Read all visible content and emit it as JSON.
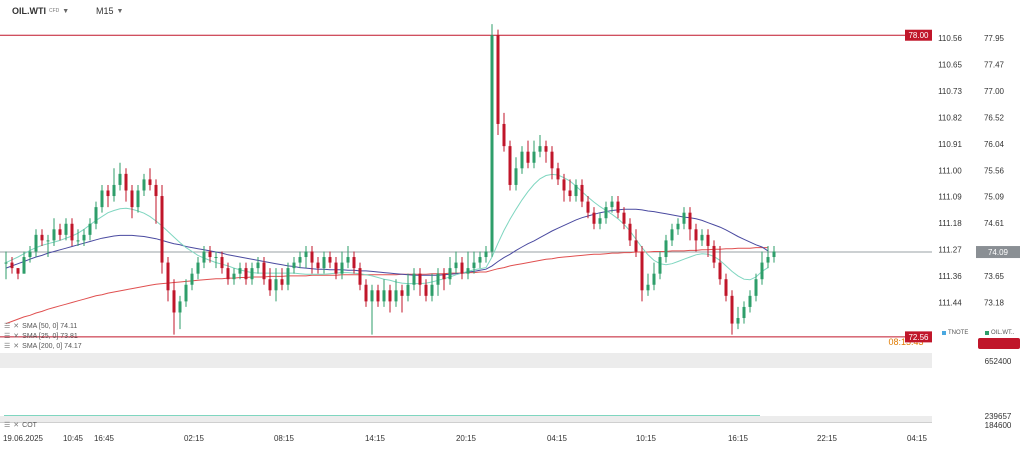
{
  "header": {
    "symbol": "OIL.WTI",
    "symbol_sub": "CFD",
    "timeframe": "M15"
  },
  "indicators": [
    {
      "label": "SMA [50, 0] 74.11",
      "color": "#4a4aa0"
    },
    {
      "label": "SMA [25, 0] 73.81",
      "color": "#7fd6c0"
    },
    {
      "label": "SMA [200, 0] 74.17",
      "color": "#e05050"
    }
  ],
  "cot_label": "COT",
  "legend_tags": [
    {
      "label": "TNOTE",
      "color": "#4aa8e0"
    },
    {
      "label": "OIL.WT..",
      "color": "#2e9e6a"
    }
  ],
  "colors": {
    "bull": "#2e9e6a",
    "bear": "#c0162a",
    "level": "#c0162a",
    "price_line": "#9aa0a6",
    "sma50": "#4a4aa0",
    "sma25": "#7fd6c0",
    "sma200": "#e05050",
    "countdown": "#e07b00"
  },
  "chart_data": {
    "type": "candlestick",
    "symbol": "OIL.WTI",
    "timeframe": "M15",
    "ylim": [
      72.4,
      78.3
    ],
    "price_ticks": [
      "77.95",
      "77.47",
      "77.00",
      "76.52",
      "76.04",
      "75.56",
      "75.09",
      "74.61",
      "74.13",
      "73.65",
      "73.18"
    ],
    "secondary_ticks": [
      "110.56",
      "110.65",
      "110.73",
      "110.82",
      "110.91",
      "111.00",
      "111.09",
      "111.18",
      "111.27",
      "111.36",
      "111.44"
    ],
    "x_labels": [
      "19.06.2025",
      "10:45",
      "16:45",
      "02:15",
      "08:15",
      "14:15",
      "20:15",
      "04:15",
      "10:15",
      "16:15",
      "22:15",
      "04:15"
    ],
    "levels": [
      {
        "label": "78.00",
        "value": 78.0
      },
      {
        "label": "72.56",
        "value": 72.56
      }
    ],
    "current_price": {
      "label": "74.09",
      "value": 74.09
    },
    "countdown_label": "08:15:43",
    "volume_axis_label": "652400",
    "cot_axis_labels": [
      "239657",
      "184600"
    ],
    "candles": [
      [
        73.9,
        73.9,
        74.1,
        73.6
      ],
      [
        73.9,
        73.8,
        74.0,
        73.7
      ],
      [
        73.8,
        73.7,
        73.8,
        73.6
      ],
      [
        73.7,
        74.0,
        74.1,
        73.7
      ],
      [
        74.0,
        74.1,
        74.2,
        73.9
      ],
      [
        74.1,
        74.4,
        74.5,
        74.0
      ],
      [
        74.4,
        74.3,
        74.5,
        74.2
      ],
      [
        74.3,
        74.3,
        74.4,
        74.0
      ],
      [
        74.3,
        74.5,
        74.7,
        74.2
      ],
      [
        74.5,
        74.4,
        74.6,
        74.3
      ],
      [
        74.4,
        74.6,
        74.7,
        74.3
      ],
      [
        74.6,
        74.3,
        74.7,
        74.2
      ],
      [
        74.3,
        74.3,
        74.5,
        74.2
      ],
      [
        74.3,
        74.4,
        74.5,
        74.2
      ],
      [
        74.4,
        74.6,
        74.7,
        74.3
      ],
      [
        74.6,
        74.9,
        75.0,
        74.5
      ],
      [
        74.9,
        75.2,
        75.3,
        74.8
      ],
      [
        75.2,
        75.1,
        75.3,
        74.9
      ],
      [
        75.1,
        75.3,
        75.6,
        75.0
      ],
      [
        75.3,
        75.5,
        75.7,
        75.2
      ],
      [
        75.5,
        75.2,
        75.6,
        75.0
      ],
      [
        75.2,
        74.9,
        75.3,
        74.7
      ],
      [
        74.9,
        75.2,
        75.3,
        74.8
      ],
      [
        75.2,
        75.4,
        75.5,
        75.1
      ],
      [
        75.4,
        75.3,
        75.6,
        75.2
      ],
      [
        75.3,
        75.1,
        75.4,
        74.6
      ],
      [
        75.1,
        73.9,
        75.3,
        73.7
      ],
      [
        73.9,
        73.4,
        74.0,
        73.2
      ],
      [
        73.4,
        73.0,
        73.6,
        72.6
      ],
      [
        73.0,
        73.2,
        73.3,
        72.7
      ],
      [
        73.2,
        73.5,
        73.6,
        73.1
      ],
      [
        73.5,
        73.7,
        73.8,
        73.4
      ],
      [
        73.7,
        73.9,
        74.0,
        73.6
      ],
      [
        73.9,
        74.1,
        74.2,
        73.8
      ],
      [
        74.1,
        74.0,
        74.2,
        73.9
      ],
      [
        74.0,
        74.0,
        74.1,
        73.8
      ],
      [
        74.0,
        73.8,
        74.1,
        73.7
      ],
      [
        73.8,
        73.6,
        73.9,
        73.5
      ],
      [
        73.6,
        73.7,
        73.8,
        73.5
      ],
      [
        73.7,
        73.8,
        73.9,
        73.6
      ],
      [
        73.8,
        73.6,
        73.9,
        73.5
      ],
      [
        73.6,
        73.8,
        73.9,
        73.5
      ],
      [
        73.8,
        73.9,
        74.0,
        73.7
      ],
      [
        73.9,
        73.6,
        74.0,
        73.5
      ],
      [
        73.6,
        73.4,
        73.8,
        73.3
      ],
      [
        73.4,
        73.6,
        73.8,
        73.2
      ],
      [
        73.6,
        73.5,
        73.8,
        73.4
      ],
      [
        73.5,
        73.8,
        73.9,
        73.4
      ],
      [
        73.8,
        73.9,
        74.0,
        73.7
      ],
      [
        73.9,
        74.0,
        74.1,
        73.8
      ],
      [
        74.0,
        74.1,
        74.2,
        73.8
      ],
      [
        74.1,
        73.9,
        74.2,
        73.7
      ],
      [
        73.9,
        73.8,
        74.0,
        73.7
      ],
      [
        73.8,
        74.0,
        74.1,
        73.7
      ],
      [
        74.0,
        73.9,
        74.1,
        73.8
      ],
      [
        73.9,
        73.7,
        74.0,
        73.6
      ],
      [
        73.7,
        73.9,
        74.1,
        73.6
      ],
      [
        73.9,
        74.0,
        74.2,
        73.8
      ],
      [
        74.0,
        73.8,
        74.1,
        73.7
      ],
      [
        73.8,
        73.5,
        73.9,
        73.4
      ],
      [
        73.5,
        73.2,
        73.6,
        73.1
      ],
      [
        73.2,
        73.4,
        73.5,
        72.6
      ],
      [
        73.4,
        73.2,
        73.5,
        73.1
      ],
      [
        73.2,
        73.4,
        73.6,
        73.1
      ],
      [
        73.4,
        73.2,
        73.5,
        73.0
      ],
      [
        73.2,
        73.4,
        73.6,
        73.1
      ],
      [
        73.4,
        73.3,
        73.5,
        73.0
      ],
      [
        73.3,
        73.5,
        73.7,
        73.2
      ],
      [
        73.5,
        73.7,
        73.8,
        73.4
      ],
      [
        73.7,
        73.5,
        73.8,
        73.3
      ],
      [
        73.5,
        73.3,
        73.6,
        73.2
      ],
      [
        73.3,
        73.5,
        73.7,
        73.2
      ],
      [
        73.5,
        73.7,
        73.8,
        73.3
      ],
      [
        73.7,
        73.6,
        73.8,
        73.4
      ],
      [
        73.6,
        73.8,
        74.0,
        73.5
      ],
      [
        73.8,
        73.9,
        74.1,
        73.7
      ],
      [
        73.9,
        73.7,
        74.0,
        73.6
      ],
      [
        73.7,
        73.8,
        74.1,
        73.6
      ],
      [
        73.8,
        73.9,
        74.1,
        73.7
      ],
      [
        73.9,
        74.0,
        74.1,
        73.8
      ],
      [
        74.0,
        74.1,
        74.2,
        73.9
      ],
      [
        74.1,
        78.0,
        78.2,
        74.0
      ],
      [
        78.0,
        76.4,
        78.1,
        76.2
      ],
      [
        76.4,
        76.0,
        76.6,
        75.9
      ],
      [
        76.0,
        75.3,
        76.1,
        75.2
      ],
      [
        75.3,
        75.6,
        75.8,
        75.2
      ],
      [
        75.6,
        75.9,
        76.0,
        75.5
      ],
      [
        75.9,
        75.7,
        76.1,
        75.6
      ],
      [
        75.7,
        75.9,
        76.1,
        75.6
      ],
      [
        75.9,
        76.0,
        76.2,
        75.8
      ],
      [
        76.0,
        75.9,
        76.1,
        75.7
      ],
      [
        75.9,
        75.6,
        76.0,
        75.4
      ],
      [
        75.6,
        75.4,
        75.7,
        75.3
      ],
      [
        75.4,
        75.2,
        75.5,
        75.0
      ],
      [
        75.2,
        75.1,
        75.4,
        75.0
      ],
      [
        75.1,
        75.3,
        75.4,
        75.0
      ],
      [
        75.3,
        75.0,
        75.4,
        74.9
      ],
      [
        75.0,
        74.8,
        75.1,
        74.7
      ],
      [
        74.8,
        74.6,
        74.9,
        74.5
      ],
      [
        74.6,
        74.7,
        74.8,
        74.5
      ],
      [
        74.7,
        74.9,
        75.0,
        74.6
      ],
      [
        74.9,
        75.0,
        75.1,
        74.8
      ],
      [
        75.0,
        74.8,
        75.1,
        74.7
      ],
      [
        74.8,
        74.6,
        74.9,
        74.5
      ],
      [
        74.6,
        74.3,
        74.7,
        74.2
      ],
      [
        74.3,
        74.1,
        74.5,
        74.0
      ],
      [
        74.1,
        73.4,
        74.2,
        73.2
      ],
      [
        73.4,
        73.5,
        73.7,
        73.3
      ],
      [
        73.5,
        73.7,
        73.9,
        73.4
      ],
      [
        73.7,
        74.0,
        74.1,
        73.6
      ],
      [
        74.0,
        74.3,
        74.4,
        73.9
      ],
      [
        74.3,
        74.5,
        74.6,
        74.2
      ],
      [
        74.5,
        74.6,
        74.7,
        74.4
      ],
      [
        74.6,
        74.8,
        74.9,
        74.5
      ],
      [
        74.8,
        74.5,
        74.9,
        74.3
      ],
      [
        74.5,
        74.3,
        74.6,
        74.1
      ],
      [
        74.3,
        74.4,
        74.5,
        74.2
      ],
      [
        74.4,
        74.2,
        74.5,
        74.0
      ],
      [
        74.2,
        73.9,
        74.3,
        73.8
      ],
      [
        73.9,
        73.6,
        74.2,
        73.5
      ],
      [
        73.6,
        73.3,
        73.7,
        73.2
      ],
      [
        73.3,
        72.8,
        73.4,
        72.6
      ],
      [
        72.8,
        72.9,
        73.1,
        72.7
      ],
      [
        72.9,
        73.1,
        73.2,
        72.8
      ],
      [
        73.1,
        73.3,
        73.4,
        73.0
      ],
      [
        73.3,
        73.6,
        73.7,
        73.2
      ],
      [
        73.6,
        73.9,
        74.1,
        73.5
      ],
      [
        73.9,
        74.0,
        74.2,
        73.8
      ],
      [
        74.0,
        74.1,
        74.2,
        73.9
      ]
    ],
    "sma_25": [
      73.9,
      73.95,
      74.0,
      74.06,
      74.12,
      74.17,
      74.21,
      74.24,
      74.27,
      74.3,
      74.34,
      74.38,
      74.43,
      74.5,
      74.58,
      74.66,
      74.73,
      74.8,
      74.84,
      74.87,
      74.88,
      74.86,
      74.83,
      74.79,
      74.73,
      74.65,
      74.56,
      74.46,
      74.36,
      74.26,
      74.17,
      74.1,
      74.03,
      73.98,
      73.94,
      73.9,
      73.87,
      73.84,
      73.8,
      73.77,
      73.74,
      73.72,
      73.71,
      73.71,
      73.71,
      73.71,
      73.71,
      73.71,
      73.71,
      73.7,
      73.69,
      73.69,
      73.69,
      73.69,
      73.7,
      73.71,
      73.72,
      73.72,
      73.71,
      73.7,
      73.68,
      73.66,
      73.63,
      73.6,
      73.58,
      73.55,
      73.53,
      73.52,
      73.52,
      73.52,
      73.53,
      73.55,
      73.58,
      73.61,
      73.64,
      73.68,
      73.71,
      73.74,
      73.77,
      73.79,
      73.81,
      74.0,
      74.25,
      74.48,
      74.68,
      74.86,
      75.03,
      75.18,
      75.31,
      75.41,
      75.47,
      75.49,
      75.48,
      75.43,
      75.37,
      75.28,
      75.18,
      75.08,
      74.99,
      74.91,
      74.84,
      74.77,
      74.69,
      74.59,
      74.47,
      74.32,
      74.17,
      74.04,
      73.94,
      73.88,
      73.86,
      73.88,
      73.92,
      73.96,
      74.0,
      74.04,
      74.06,
      74.05,
      74.01,
      73.94,
      73.84,
      73.74,
      73.66,
      73.6,
      73.59,
      73.64,
      73.74,
      73.81
    ],
    "sma_50": [
      73.8,
      73.84,
      73.88,
      73.92,
      73.96,
      74.0,
      74.03,
      74.07,
      74.1,
      74.13,
      74.16,
      74.19,
      74.22,
      74.25,
      74.28,
      74.31,
      74.34,
      74.36,
      74.38,
      74.39,
      74.39,
      74.39,
      74.38,
      74.37,
      74.35,
      74.33,
      74.3,
      74.27,
      74.24,
      74.22,
      74.19,
      74.17,
      74.15,
      74.13,
      74.11,
      74.09,
      74.07,
      74.04,
      74.02,
      74.0,
      73.98,
      73.96,
      73.94,
      73.92,
      73.9,
      73.88,
      73.86,
      73.84,
      73.83,
      73.81,
      73.8,
      73.79,
      73.78,
      73.78,
      73.77,
      73.77,
      73.77,
      73.76,
      73.76,
      73.75,
      73.75,
      73.74,
      73.73,
      73.72,
      73.71,
      73.7,
      73.69,
      73.68,
      73.67,
      73.67,
      73.67,
      73.67,
      73.67,
      73.68,
      73.69,
      73.7,
      73.71,
      73.73,
      73.74,
      73.76,
      73.78,
      73.84,
      73.92,
      73.99,
      74.05,
      74.12,
      74.18,
      74.24,
      74.29,
      74.35,
      74.41,
      74.47,
      74.52,
      74.57,
      74.62,
      74.67,
      74.71,
      74.74,
      74.77,
      74.8,
      74.82,
      74.84,
      74.85,
      74.86,
      74.86,
      74.86,
      74.85,
      74.83,
      74.82,
      74.8,
      74.78,
      74.76,
      74.74,
      74.72,
      74.71,
      74.69,
      74.66,
      74.62,
      74.58,
      74.54,
      74.49,
      74.43,
      74.37,
      74.32,
      74.27,
      74.22,
      74.18,
      74.11
    ],
    "sma_200": [
      72.8,
      72.84,
      72.88,
      72.92,
      72.95,
      72.99,
      73.02,
      73.06,
      73.09,
      73.12,
      73.15,
      73.18,
      73.21,
      73.24,
      73.27,
      73.3,
      73.32,
      73.35,
      73.37,
      73.39,
      73.41,
      73.43,
      73.45,
      73.47,
      73.49,
      73.51,
      73.52,
      73.53,
      73.54,
      73.55,
      73.56,
      73.57,
      73.58,
      73.59,
      73.6,
      73.61,
      73.61,
      73.62,
      73.62,
      73.63,
      73.63,
      73.64,
      73.64,
      73.64,
      73.65,
      73.65,
      73.65,
      73.66,
      73.66,
      73.66,
      73.66,
      73.67,
      73.67,
      73.67,
      73.67,
      73.67,
      73.68,
      73.68,
      73.68,
      73.68,
      73.68,
      73.68,
      73.68,
      73.68,
      73.68,
      73.68,
      73.69,
      73.69,
      73.69,
      73.69,
      73.69,
      73.7,
      73.7,
      73.7,
      73.71,
      73.71,
      73.71,
      73.72,
      73.72,
      73.73,
      73.73,
      73.76,
      73.79,
      73.81,
      73.84,
      73.86,
      73.88,
      73.9,
      73.92,
      73.94,
      73.96,
      73.97,
      73.99,
      74.0,
      74.01,
      74.02,
      74.03,
      74.04,
      74.05,
      74.05,
      74.06,
      74.07,
      74.07,
      74.08,
      74.08,
      74.09,
      74.09,
      74.09,
      74.1,
      74.1,
      74.1,
      74.11,
      74.11,
      74.11,
      74.12,
      74.12,
      74.13,
      74.13,
      74.14,
      74.14,
      74.15,
      74.15,
      74.16,
      74.16,
      74.16,
      74.17,
      74.17,
      74.17
    ]
  }
}
